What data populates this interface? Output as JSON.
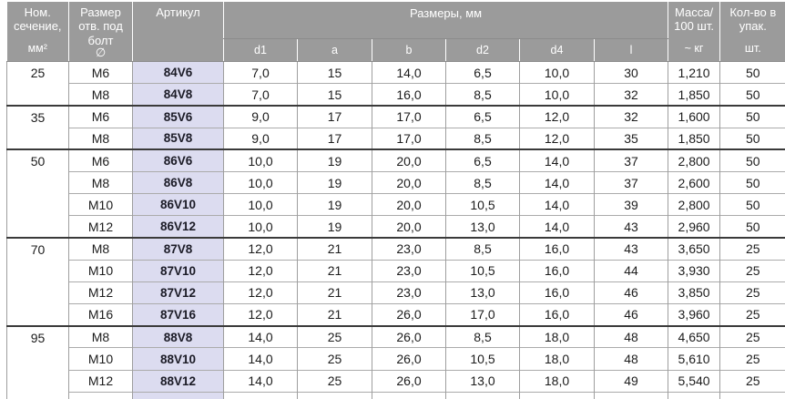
{
  "colors": {
    "header_bg": "#9b9b9b",
    "header_text": "#ffffff",
    "article_bg": "#dcdcf0",
    "article_text": "#1b1b26",
    "text": "#1c1c1c",
    "grid_line": "#9e9e9e",
    "row_line": "#ababab",
    "group_line": "#3a3a3a"
  },
  "header": {
    "section_title_lines": [
      "Ном.",
      "сечение,"
    ],
    "section_unit": "мм²",
    "bolt_title_lines": [
      "Размер",
      "отв. под",
      "болт"
    ],
    "bolt_symbol": "∅",
    "article_title": "Артикул",
    "dimensions_title": "Размеры, мм",
    "dimension_cols": [
      "d1",
      "a",
      "b",
      "d2",
      "d4",
      "l"
    ],
    "mass_title_lines": [
      "Масса/",
      "100 шт."
    ],
    "mass_unit": "~ кг",
    "qty_title_lines": [
      "Кол-во в",
      "упак."
    ],
    "qty_unit": "шт."
  },
  "groups": [
    {
      "section": "25",
      "rows": [
        {
          "bolt": "M6",
          "article": "84V6",
          "dims": [
            "7,0",
            "15",
            "14,0",
            "6,5",
            "10,0",
            "30"
          ],
          "mass": "1,210",
          "qty": "50"
        },
        {
          "bolt": "M8",
          "article": "84V8",
          "dims": [
            "7,0",
            "15",
            "16,0",
            "8,5",
            "10,0",
            "32"
          ],
          "mass": "1,850",
          "qty": "50"
        }
      ]
    },
    {
      "section": "35",
      "rows": [
        {
          "bolt": "M6",
          "article": "85V6",
          "dims": [
            "9,0",
            "17",
            "17,0",
            "6,5",
            "12,0",
            "32"
          ],
          "mass": "1,600",
          "qty": "50"
        },
        {
          "bolt": "M8",
          "article": "85V8",
          "dims": [
            "9,0",
            "17",
            "17,0",
            "8,5",
            "12,0",
            "35"
          ],
          "mass": "1,850",
          "qty": "50"
        }
      ]
    },
    {
      "section": "50",
      "rows": [
        {
          "bolt": "M6",
          "article": "86V6",
          "dims": [
            "10,0",
            "19",
            "20,0",
            "6,5",
            "14,0",
            "37"
          ],
          "mass": "2,800",
          "qty": "50"
        },
        {
          "bolt": "M8",
          "article": "86V8",
          "dims": [
            "10,0",
            "19",
            "20,0",
            "8,5",
            "14,0",
            "37"
          ],
          "mass": "2,600",
          "qty": "50"
        },
        {
          "bolt": "M10",
          "article": "86V10",
          "dims": [
            "10,0",
            "19",
            "20,0",
            "10,5",
            "14,0",
            "39"
          ],
          "mass": "2,800",
          "qty": "50"
        },
        {
          "bolt": "M12",
          "article": "86V12",
          "dims": [
            "10,0",
            "19",
            "20,0",
            "13,0",
            "14,0",
            "43"
          ],
          "mass": "2,960",
          "qty": "50"
        }
      ]
    },
    {
      "section": "70",
      "rows": [
        {
          "bolt": "M8",
          "article": "87V8",
          "dims": [
            "12,0",
            "21",
            "23,0",
            "8,5",
            "16,0",
            "43"
          ],
          "mass": "3,650",
          "qty": "25"
        },
        {
          "bolt": "M10",
          "article": "87V10",
          "dims": [
            "12,0",
            "21",
            "23,0",
            "10,5",
            "16,0",
            "44"
          ],
          "mass": "3,930",
          "qty": "25"
        },
        {
          "bolt": "M12",
          "article": "87V12",
          "dims": [
            "12,0",
            "21",
            "23,0",
            "13,0",
            "16,0",
            "46"
          ],
          "mass": "3,850",
          "qty": "25"
        },
        {
          "bolt": "M16",
          "article": "87V16",
          "dims": [
            "12,0",
            "21",
            "26,0",
            "17,0",
            "16,0",
            "46"
          ],
          "mass": "3,960",
          "qty": "25"
        }
      ]
    },
    {
      "section": "95",
      "cutoff_row": true,
      "rows": [
        {
          "bolt": "M8",
          "article": "88V8",
          "dims": [
            "14,0",
            "25",
            "26,0",
            "8,5",
            "18,0",
            "48"
          ],
          "mass": "4,650",
          "qty": "25"
        },
        {
          "bolt": "M10",
          "article": "88V10",
          "dims": [
            "14,0",
            "25",
            "26,0",
            "10,5",
            "18,0",
            "48"
          ],
          "mass": "5,610",
          "qty": "25"
        },
        {
          "bolt": "M12",
          "article": "88V12",
          "dims": [
            "14,0",
            "25",
            "26,0",
            "13,0",
            "18,0",
            "49"
          ],
          "mass": "5,540",
          "qty": "25"
        }
      ]
    }
  ]
}
